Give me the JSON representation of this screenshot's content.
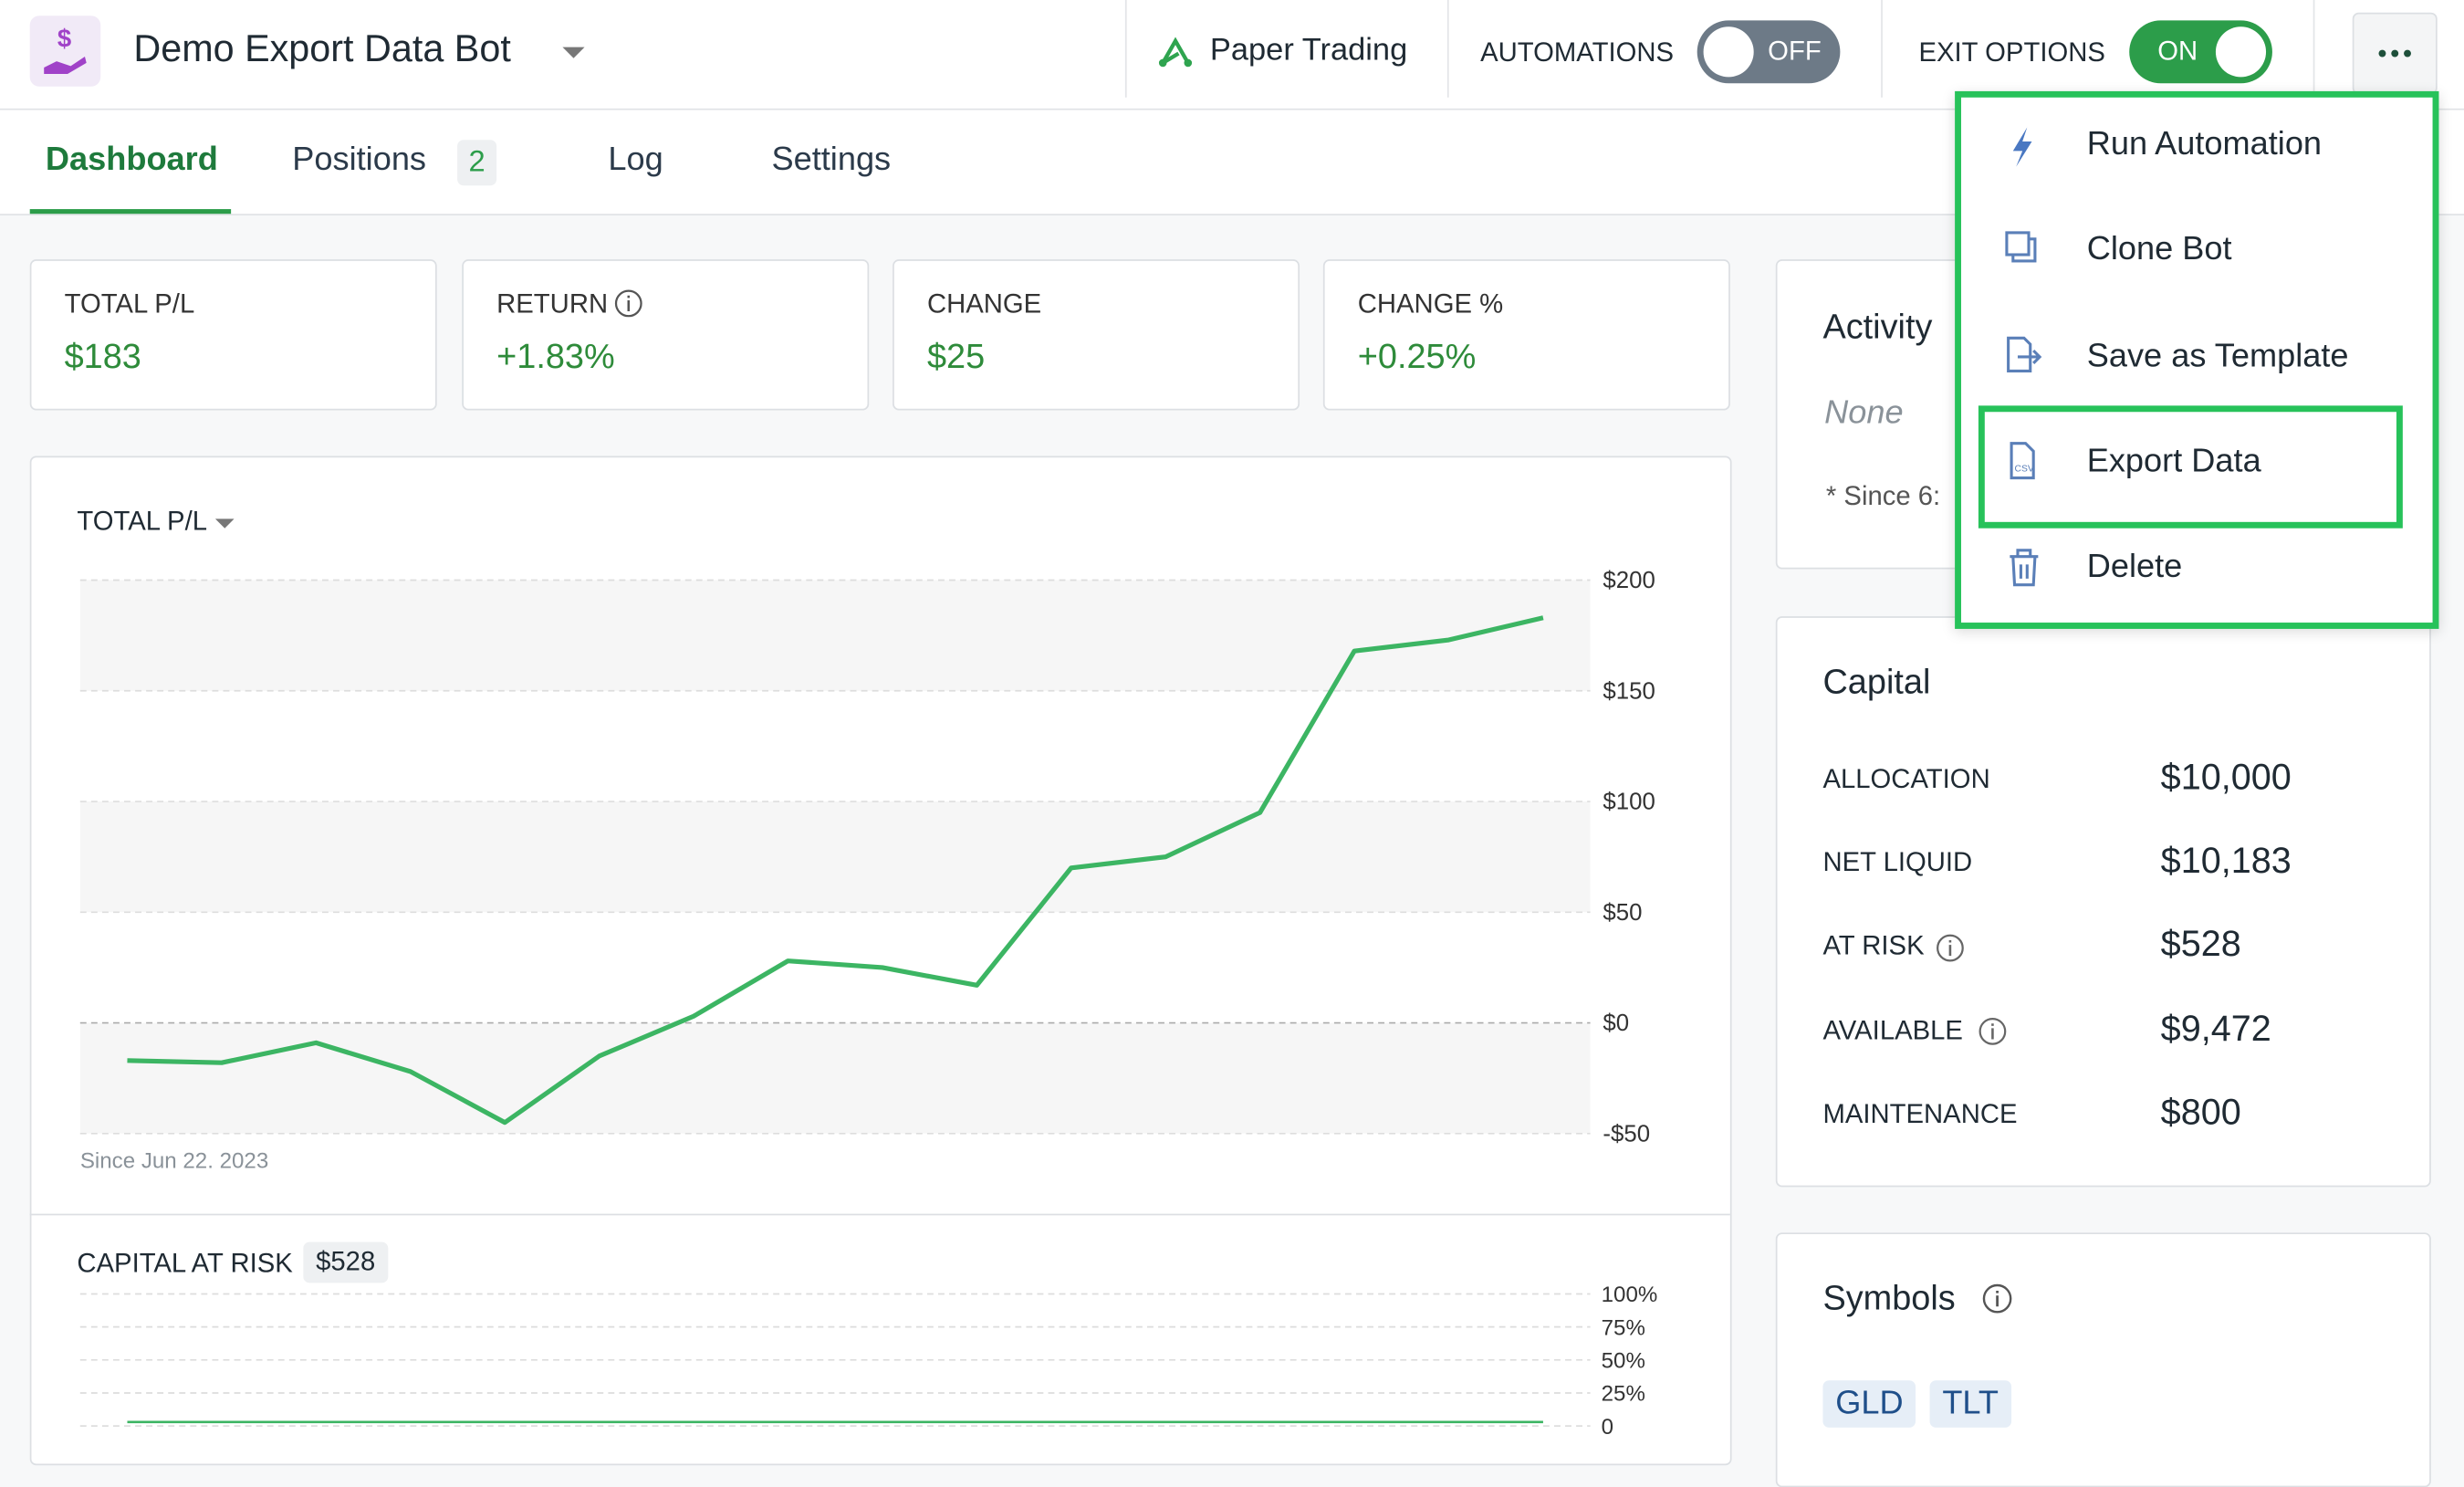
{
  "header": {
    "title": "Demo Export Data Bot",
    "mode": "Paper Trading",
    "automations": {
      "label": "AUTOMATIONS",
      "state": "OFF"
    },
    "exit_options": {
      "label": "EXIT OPTIONS",
      "state": "ON"
    }
  },
  "tabs": [
    {
      "label": "Dashboard",
      "active": true
    },
    {
      "label": "Positions",
      "badge": 2
    },
    {
      "label": "Log"
    },
    {
      "label": "Settings"
    }
  ],
  "stats": [
    {
      "label": "TOTAL P/L",
      "value": "$183"
    },
    {
      "label": "RETURN",
      "value": "+1.83%"
    },
    {
      "label": "CHANGE",
      "value": "$25"
    },
    {
      "label": "CHANGE %",
      "value": "+0.25%"
    }
  ],
  "chart_data": [
    {
      "type": "line",
      "title": "TOTAL P/L",
      "note": "Since Jun 22. 2023",
      "color": "#3cb563",
      "grid": true,
      "values": [
        -17,
        -18,
        -9,
        -22,
        -45,
        -15,
        3,
        28,
        25,
        17,
        70,
        75,
        95,
        168,
        173,
        183
      ],
      "ylim": [
        -50,
        200
      ],
      "yticks": [
        {
          "value": -50,
          "label": "-$50"
        },
        {
          "value": 0,
          "label": "$0"
        },
        {
          "value": 50,
          "label": "$50"
        },
        {
          "value": 100,
          "label": "$100"
        },
        {
          "value": 150,
          "label": "$150"
        },
        {
          "value": 200,
          "label": "$200"
        }
      ]
    },
    {
      "type": "line",
      "title": "CAPITAL AT RISK",
      "badge": "$528",
      "color": "#3cb563",
      "grid": true,
      "values": [
        3,
        3,
        3,
        3,
        3,
        3,
        3,
        3,
        3,
        3,
        3,
        3,
        3,
        3,
        3,
        3
      ],
      "ylim": [
        0,
        100
      ],
      "yticks": [
        0,
        {
          "value": 25,
          "label": "25%"
        },
        {
          "value": 50,
          "label": "50%"
        },
        {
          "value": 75,
          "label": "75%"
        },
        {
          "value": 100,
          "label": "100%"
        }
      ]
    }
  ],
  "activity": {
    "title": "Activity",
    "status": "None",
    "note": "* Since 6:"
  },
  "capital": {
    "title": "Capital",
    "rows": [
      [
        "ALLOCATION",
        "$10,000"
      ],
      [
        "NET LIQUID",
        "$10,183"
      ],
      [
        "AT RISK",
        "$528"
      ],
      [
        "AVAILABLE",
        "$9,472"
      ],
      [
        "MAINTENANCE",
        "$800"
      ]
    ]
  },
  "symbols": {
    "title": "Symbols",
    "items": [
      "GLD",
      "TLT"
    ]
  },
  "menu": {
    "items": [
      "Run Automation",
      "Clone Bot",
      "Save as Template",
      "Export Data",
      "Delete"
    ]
  }
}
